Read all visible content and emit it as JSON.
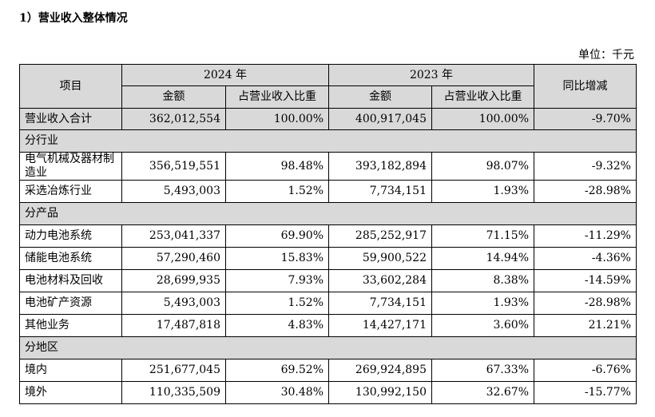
{
  "heading": "1）营业收入整体情况",
  "unit": "单位：千元",
  "header": {
    "item": "项目",
    "year_2024": "2024 年",
    "year_2023": "2023 年",
    "yoy": "同比增减",
    "amount_2024": "金额",
    "share_2024": "占营业收入比重",
    "amount_2023": "金额",
    "share_2023": "占营业收入比重"
  },
  "total": {
    "label": "营业收入合计",
    "amount_2024": "362,012,554",
    "share_2024": "100.00%",
    "amount_2023": "400,917,045",
    "share_2023": "100.00%",
    "yoy": "-9.70%"
  },
  "sections": [
    {
      "title": "分行业",
      "rows": [
        {
          "label": "电气机械及器材制造业",
          "amount_2024": "356,519,551",
          "share_2024": "98.48%",
          "amount_2023": "393,182,894",
          "share_2023": "98.07%",
          "yoy": "-9.32%"
        },
        {
          "label": "采选冶炼行业",
          "amount_2024": "5,493,003",
          "share_2024": "1.52%",
          "amount_2023": "7,734,151",
          "share_2023": "1.93%",
          "yoy": "-28.98%"
        }
      ]
    },
    {
      "title": "分产品",
      "rows": [
        {
          "label": "动力电池系统",
          "amount_2024": "253,041,337",
          "share_2024": "69.90%",
          "amount_2023": "285,252,917",
          "share_2023": "71.15%",
          "yoy": "-11.29%"
        },
        {
          "label": "储能电池系统",
          "amount_2024": "57,290,460",
          "share_2024": "15.83%",
          "amount_2023": "59,900,522",
          "share_2023": "14.94%",
          "yoy": "-4.36%"
        },
        {
          "label": "电池材料及回收",
          "amount_2024": "28,699,935",
          "share_2024": "7.93%",
          "amount_2023": "33,602,284",
          "share_2023": "8.38%",
          "yoy": "-14.59%"
        },
        {
          "label": "电池矿产资源",
          "amount_2024": "5,493,003",
          "share_2024": "1.52%",
          "amount_2023": "7,734,151",
          "share_2023": "1.93%",
          "yoy": "-28.98%"
        },
        {
          "label": "其他业务",
          "amount_2024": "17,487,818",
          "share_2024": "4.83%",
          "amount_2023": "14,427,171",
          "share_2023": "3.60%",
          "yoy": "21.21%"
        }
      ]
    },
    {
      "title": "分地区",
      "rows": [
        {
          "label": "境内",
          "amount_2024": "251,677,045",
          "share_2024": "69.52%",
          "amount_2023": "269,924,895",
          "share_2023": "67.33%",
          "yoy": "-6.76%"
        },
        {
          "label": "境外",
          "amount_2024": "110,335,509",
          "share_2024": "30.48%",
          "amount_2023": "130,992,150",
          "share_2023": "32.67%",
          "yoy": "-15.77%"
        }
      ]
    }
  ]
}
